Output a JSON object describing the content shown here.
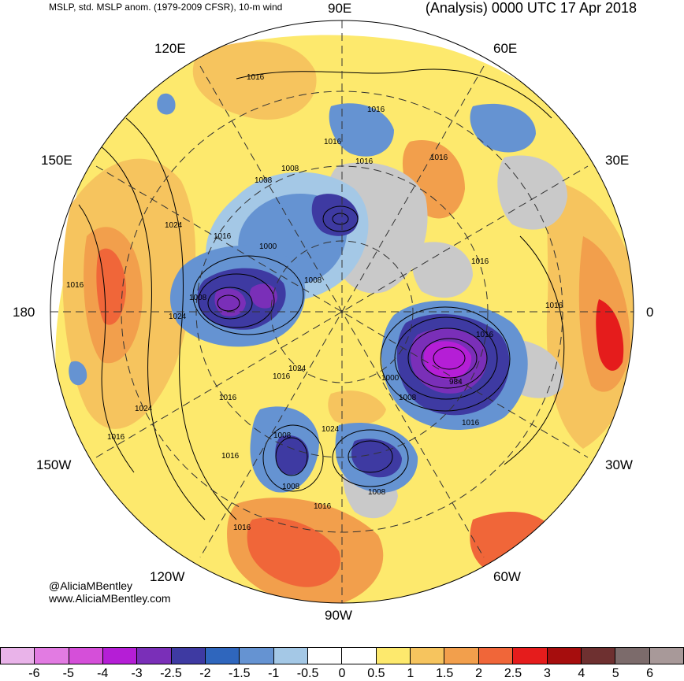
{
  "header": {
    "left": "MSLP, std. MSLP anom. (1979-2009 CFSR), 10-m wind",
    "right": "(Analysis) 0000 UTC 17 Apr 2018"
  },
  "credits": {
    "twitter": "@AliciaMBentley",
    "website": "www.AliciaMBentley.com"
  },
  "longitude_labels": [
    "90E",
    "60E",
    "30E",
    "0",
    "30W",
    "60W",
    "90W",
    "120W",
    "150W",
    "180",
    "150E",
    "120E"
  ],
  "isobar_labels": [
    "1016",
    "1016",
    "1016",
    "1008",
    "1008",
    "1016",
    "1024",
    "1016",
    "1000",
    "1008",
    "1008",
    "1016",
    "1024",
    "1016",
    "1016",
    "1016",
    "1024",
    "1016",
    "1000",
    "1008",
    "984",
    "1016",
    "1016",
    "1008",
    "1024",
    "1008",
    "1008",
    "1024",
    "1016",
    "1016",
    "1016",
    "1016",
    "1016"
  ],
  "colorbar": {
    "colors": [
      "#e9b3e9",
      "#e27be2",
      "#d54fd9",
      "#b51ed6",
      "#7a2fb8",
      "#3e3aa2",
      "#2f66bd",
      "#6593d2",
      "#a4c8e6",
      "#ffffff",
      "#ffffff",
      "#fde96d",
      "#f6c45e",
      "#f29f4c",
      "#f06639",
      "#e51c1c",
      "#a60d0d",
      "#6e3030",
      "#7c6b6b",
      "#a89999"
    ],
    "ticks": [
      "-6",
      "-5",
      "-4",
      "-3",
      "-2.5",
      "-2",
      "-1.5",
      "-1",
      "-0.5",
      "0",
      "0.5",
      "1",
      "1.5",
      "2",
      "2.5",
      "3",
      "4",
      "5",
      "6"
    ]
  }
}
